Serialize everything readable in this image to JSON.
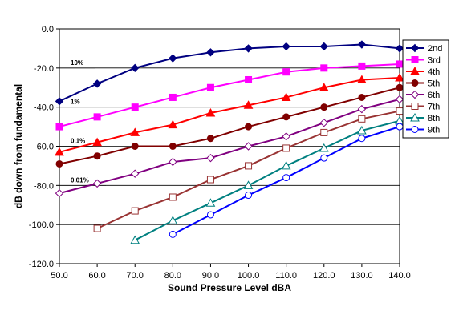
{
  "chart_data": {
    "type": "line",
    "title": "",
    "xlabel": "Sound Pressure Level dBA",
    "ylabel": "dB down from fundamental",
    "xlim": [
      50,
      140
    ],
    "ylim": [
      -120,
      0
    ],
    "x_tick_labels": [
      "50.0",
      "60.0",
      "70.0",
      "80.0",
      "90.0",
      "100.0",
      "110.0",
      "120.0",
      "130.0",
      "140.0"
    ],
    "y_tick_labels": [
      "0.0",
      "-20.0",
      "-40.0",
      "-60.0",
      "-80.0",
      "-100.0",
      "-120.0"
    ],
    "grid": "horizontal",
    "legend_position": "right",
    "reference_lines": [
      {
        "label": "10%",
        "y": -20
      },
      {
        "label": "1%",
        "y": -40
      },
      {
        "label": "0.1%",
        "y": -60
      },
      {
        "label": "0.01%",
        "y": -80
      }
    ],
    "series": [
      {
        "name": "2nd",
        "color": "#000080",
        "marker": "diamond-filled",
        "x": [
          50,
          60,
          70,
          80,
          90,
          100,
          110,
          120,
          130,
          140
        ],
        "y": [
          -37,
          -28,
          -20,
          -15,
          -12,
          -10,
          -9,
          -9,
          -8,
          -10
        ]
      },
      {
        "name": "3rd",
        "color": "#FF00FF",
        "marker": "square-filled",
        "x": [
          50,
          60,
          70,
          80,
          90,
          100,
          110,
          120,
          130,
          140
        ],
        "y": [
          -50,
          -45,
          -40,
          -35,
          -30,
          -26,
          -22,
          -20,
          -19,
          -18
        ]
      },
      {
        "name": "4th",
        "color": "#FF0000",
        "marker": "triangle-filled",
        "x": [
          50,
          60,
          70,
          80,
          90,
          100,
          110,
          120,
          130,
          140
        ],
        "y": [
          -63,
          -58,
          -53,
          -49,
          -43,
          -39,
          -35,
          -30,
          -26,
          -25
        ]
      },
      {
        "name": "5th",
        "color": "#800000",
        "marker": "circle-filled",
        "x": [
          50,
          60,
          70,
          80,
          90,
          100,
          110,
          120,
          130,
          140
        ],
        "y": [
          -69,
          -65,
          -60,
          -60,
          -56,
          -50,
          -45,
          -40,
          -35,
          -30
        ]
      },
      {
        "name": "6th",
        "color": "#800080",
        "marker": "diamond-open",
        "x": [
          50,
          60,
          70,
          80,
          90,
          100,
          110,
          120,
          130,
          140
        ],
        "y": [
          -84,
          -79,
          -74,
          -68,
          -66,
          -60,
          -55,
          -48,
          -41,
          -36
        ]
      },
      {
        "name": "7th",
        "color": "#993333",
        "marker": "square-open",
        "x": [
          60,
          70,
          80,
          90,
          100,
          110,
          120,
          130,
          140
        ],
        "y": [
          -102,
          -93,
          -86,
          -77,
          -70,
          -61,
          -53,
          -46,
          -42
        ]
      },
      {
        "name": "8th",
        "color": "#008080",
        "marker": "triangle-open",
        "x": [
          70,
          80,
          90,
          100,
          110,
          120,
          130,
          140
        ],
        "y": [
          -108,
          -98,
          -89,
          -80,
          -70,
          -61,
          -52,
          -47
        ]
      },
      {
        "name": "9th",
        "color": "#0000FF",
        "marker": "circle-open",
        "x": [
          80,
          90,
          100,
          110,
          120,
          130,
          140
        ],
        "y": [
          -105,
          -95,
          -85,
          -76,
          -66,
          -56,
          -50
        ]
      }
    ]
  }
}
